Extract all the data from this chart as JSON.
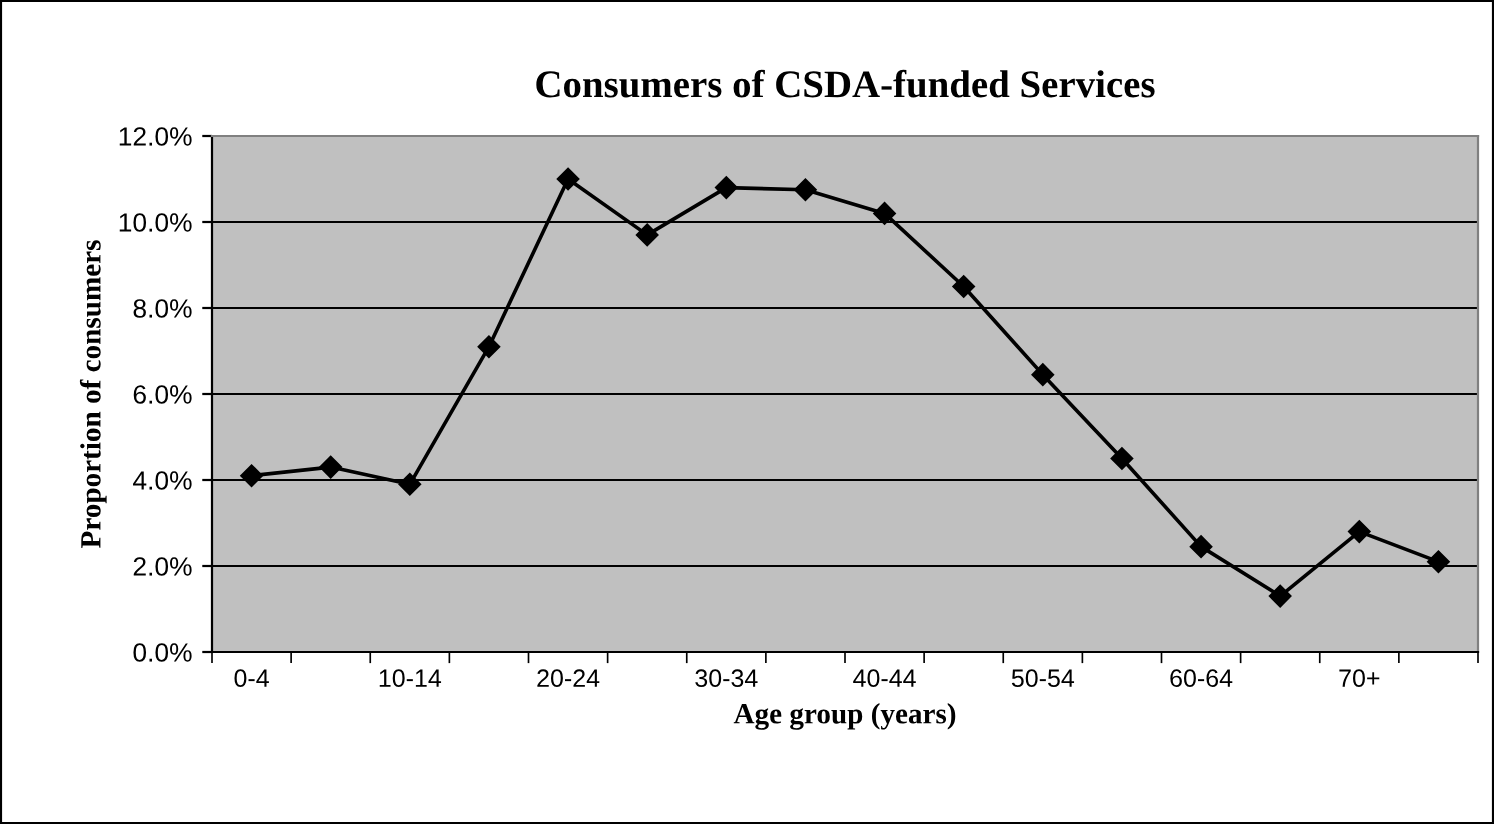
{
  "chart_data": {
    "type": "line",
    "title": "Consumers of CSDA-funded Services",
    "xlabel": "Age group (years)",
    "ylabel": "Proportion of consumers",
    "categories": [
      "0-4",
      null,
      "10-14",
      null,
      "20-24",
      null,
      "30-34",
      null,
      "40-44",
      null,
      "50-54",
      null,
      "60-64",
      null,
      "70+",
      null
    ],
    "series": [
      {
        "color": "#000000",
        "values": [
          4.1,
          4.3,
          3.9,
          7.1,
          11.0,
          9.7,
          10.8,
          10.75,
          10.2,
          8.5,
          6.45,
          4.5,
          2.45,
          1.3,
          2.8,
          2.1
        ]
      }
    ],
    "ylim": [
      0,
      12
    ],
    "yticks": [
      {
        "value": 0,
        "label": "0.0%"
      },
      {
        "value": 2,
        "label": "2.0%"
      },
      {
        "value": 4,
        "label": "4.0%"
      },
      {
        "value": 6,
        "label": "6.0%"
      },
      {
        "value": 8,
        "label": "8.0%"
      },
      {
        "value": 10,
        "label": "10.0%"
      },
      {
        "value": 12,
        "label": "12.0%"
      }
    ],
    "grid": "y",
    "legend": false,
    "marker": "diamond",
    "line_style": "solid"
  }
}
